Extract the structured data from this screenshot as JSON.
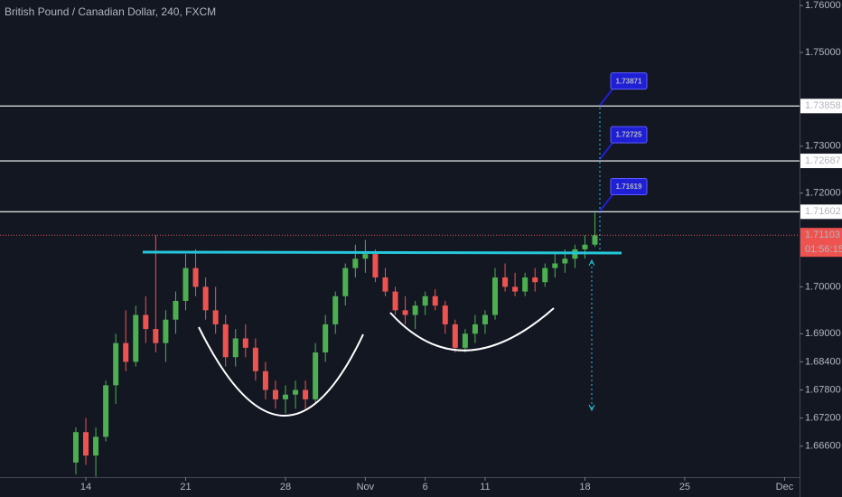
{
  "chart_data": {
    "type": "candlestick",
    "title": "British Pound / Canadian Dollar, 240, FXCM",
    "x": [
      -0.5,
      0,
      0.5,
      1,
      1.5,
      2,
      2.5,
      3,
      3.5,
      4,
      4.5,
      5,
      5.5,
      6,
      6.5,
      7,
      7.5,
      8,
      8.5,
      9,
      9.5,
      10,
      10.5,
      11,
      11.5,
      12,
      12.5,
      13,
      13.5,
      14,
      14.5,
      15,
      15.5,
      16,
      16.5,
      17,
      17.5,
      18,
      18.5,
      19,
      19.5,
      20,
      20.5,
      21,
      21.5,
      22,
      22.5,
      23,
      23.5,
      24,
      24.5,
      25,
      25.5
    ],
    "open": [
      1.6625,
      1.669,
      1.664,
      1.668,
      1.679,
      1.688,
      1.684,
      1.694,
      1.691,
      1.688,
      1.693,
      1.697,
      1.704,
      1.7,
      1.695,
      1.692,
      1.685,
      1.689,
      1.687,
      1.682,
      1.678,
      1.676,
      1.677,
      1.678,
      1.676,
      1.686,
      1.692,
      1.698,
      1.704,
      1.706,
      1.707,
      1.702,
      1.699,
      1.695,
      1.694,
      1.696,
      1.698,
      1.696,
      1.692,
      1.687,
      1.69,
      1.692,
      1.694,
      1.702,
      1.7,
      1.699,
      1.702,
      1.701,
      1.704,
      1.705,
      1.706,
      1.708,
      1.709
    ],
    "high": [
      1.67,
      1.672,
      1.67,
      1.68,
      1.69,
      1.695,
      1.696,
      1.698,
      1.711,
      1.695,
      1.699,
      1.707,
      1.708,
      1.702,
      1.7,
      1.694,
      1.691,
      1.692,
      1.689,
      1.684,
      1.68,
      1.679,
      1.68,
      1.68,
      1.688,
      1.694,
      1.699,
      1.705,
      1.709,
      1.71,
      1.708,
      1.704,
      1.7,
      1.698,
      1.697,
      1.699,
      1.6995,
      1.697,
      1.693,
      1.691,
      1.694,
      1.695,
      1.704,
      1.705,
      1.703,
      1.703,
      1.704,
      1.705,
      1.707,
      1.708,
      1.709,
      1.711,
      1.7158
    ],
    "low": [
      1.66,
      1.662,
      1.6595,
      1.667,
      1.675,
      1.682,
      1.683,
      1.688,
      1.686,
      1.684,
      1.69,
      1.695,
      1.698,
      1.693,
      1.69,
      1.683,
      1.683,
      1.685,
      1.68,
      1.676,
      1.674,
      1.673,
      1.674,
      1.674,
      1.675,
      1.684,
      1.69,
      1.696,
      1.702,
      1.703,
      1.701,
      1.698,
      1.694,
      1.692,
      1.691,
      1.694,
      1.695,
      1.69,
      1.686,
      1.686,
      1.688,
      1.69,
      1.693,
      1.699,
      1.698,
      1.698,
      1.699,
      1.7,
      1.702,
      1.703,
      1.704,
      1.706,
      1.7085
    ],
    "close": [
      1.669,
      1.664,
      1.668,
      1.679,
      1.688,
      1.684,
      1.694,
      1.691,
      1.688,
      1.693,
      1.697,
      1.704,
      1.7,
      1.695,
      1.692,
      1.685,
      1.689,
      1.687,
      1.682,
      1.678,
      1.676,
      1.677,
      1.678,
      1.676,
      1.686,
      1.692,
      1.698,
      1.704,
      1.706,
      1.707,
      1.702,
      1.699,
      1.695,
      1.694,
      1.696,
      1.698,
      1.696,
      1.692,
      1.687,
      1.69,
      1.692,
      1.694,
      1.702,
      1.7,
      1.699,
      1.702,
      1.701,
      1.704,
      1.705,
      1.706,
      1.708,
      1.709,
      1.711
    ],
    "up_color": "#4caf50",
    "down_color": "#ef5350",
    "xlim": [
      -4.3,
      35.75
    ],
    "xticks": [
      {
        "value": 0,
        "label": "14"
      },
      {
        "value": 5,
        "label": "21"
      },
      {
        "value": 10,
        "label": "28"
      },
      {
        "value": 14,
        "label": "Nov"
      },
      {
        "value": 17,
        "label": "6"
      },
      {
        "value": 20,
        "label": "11"
      },
      {
        "value": 25,
        "label": "18"
      },
      {
        "value": 30,
        "label": "25"
      },
      {
        "value": 35,
        "label": "Dec"
      }
    ],
    "ylim": [
      1.6594,
      1.7612
    ],
    "yticks": [
      {
        "value": 1.76,
        "label": "1.76000"
      },
      {
        "value": 1.75,
        "label": "1.75000"
      },
      {
        "value": 1.73,
        "label": "1.73000"
      },
      {
        "value": 1.72,
        "label": "1.72000"
      },
      {
        "value": 1.7,
        "label": "1.70000"
      },
      {
        "value": 1.69,
        "label": "1.69000"
      },
      {
        "value": 1.684,
        "label": "1.68400"
      },
      {
        "value": 1.678,
        "label": "1.67800"
      },
      {
        "value": 1.672,
        "label": "1.67200"
      },
      {
        "value": 1.666,
        "label": "1.66600"
      }
    ],
    "levels": [
      1.73858,
      1.72687,
      1.71602
    ],
    "last_price": 1.71103,
    "countdown": "01:56:15",
    "annotations": [
      1.73871,
      1.72725,
      1.71619
    ]
  }
}
